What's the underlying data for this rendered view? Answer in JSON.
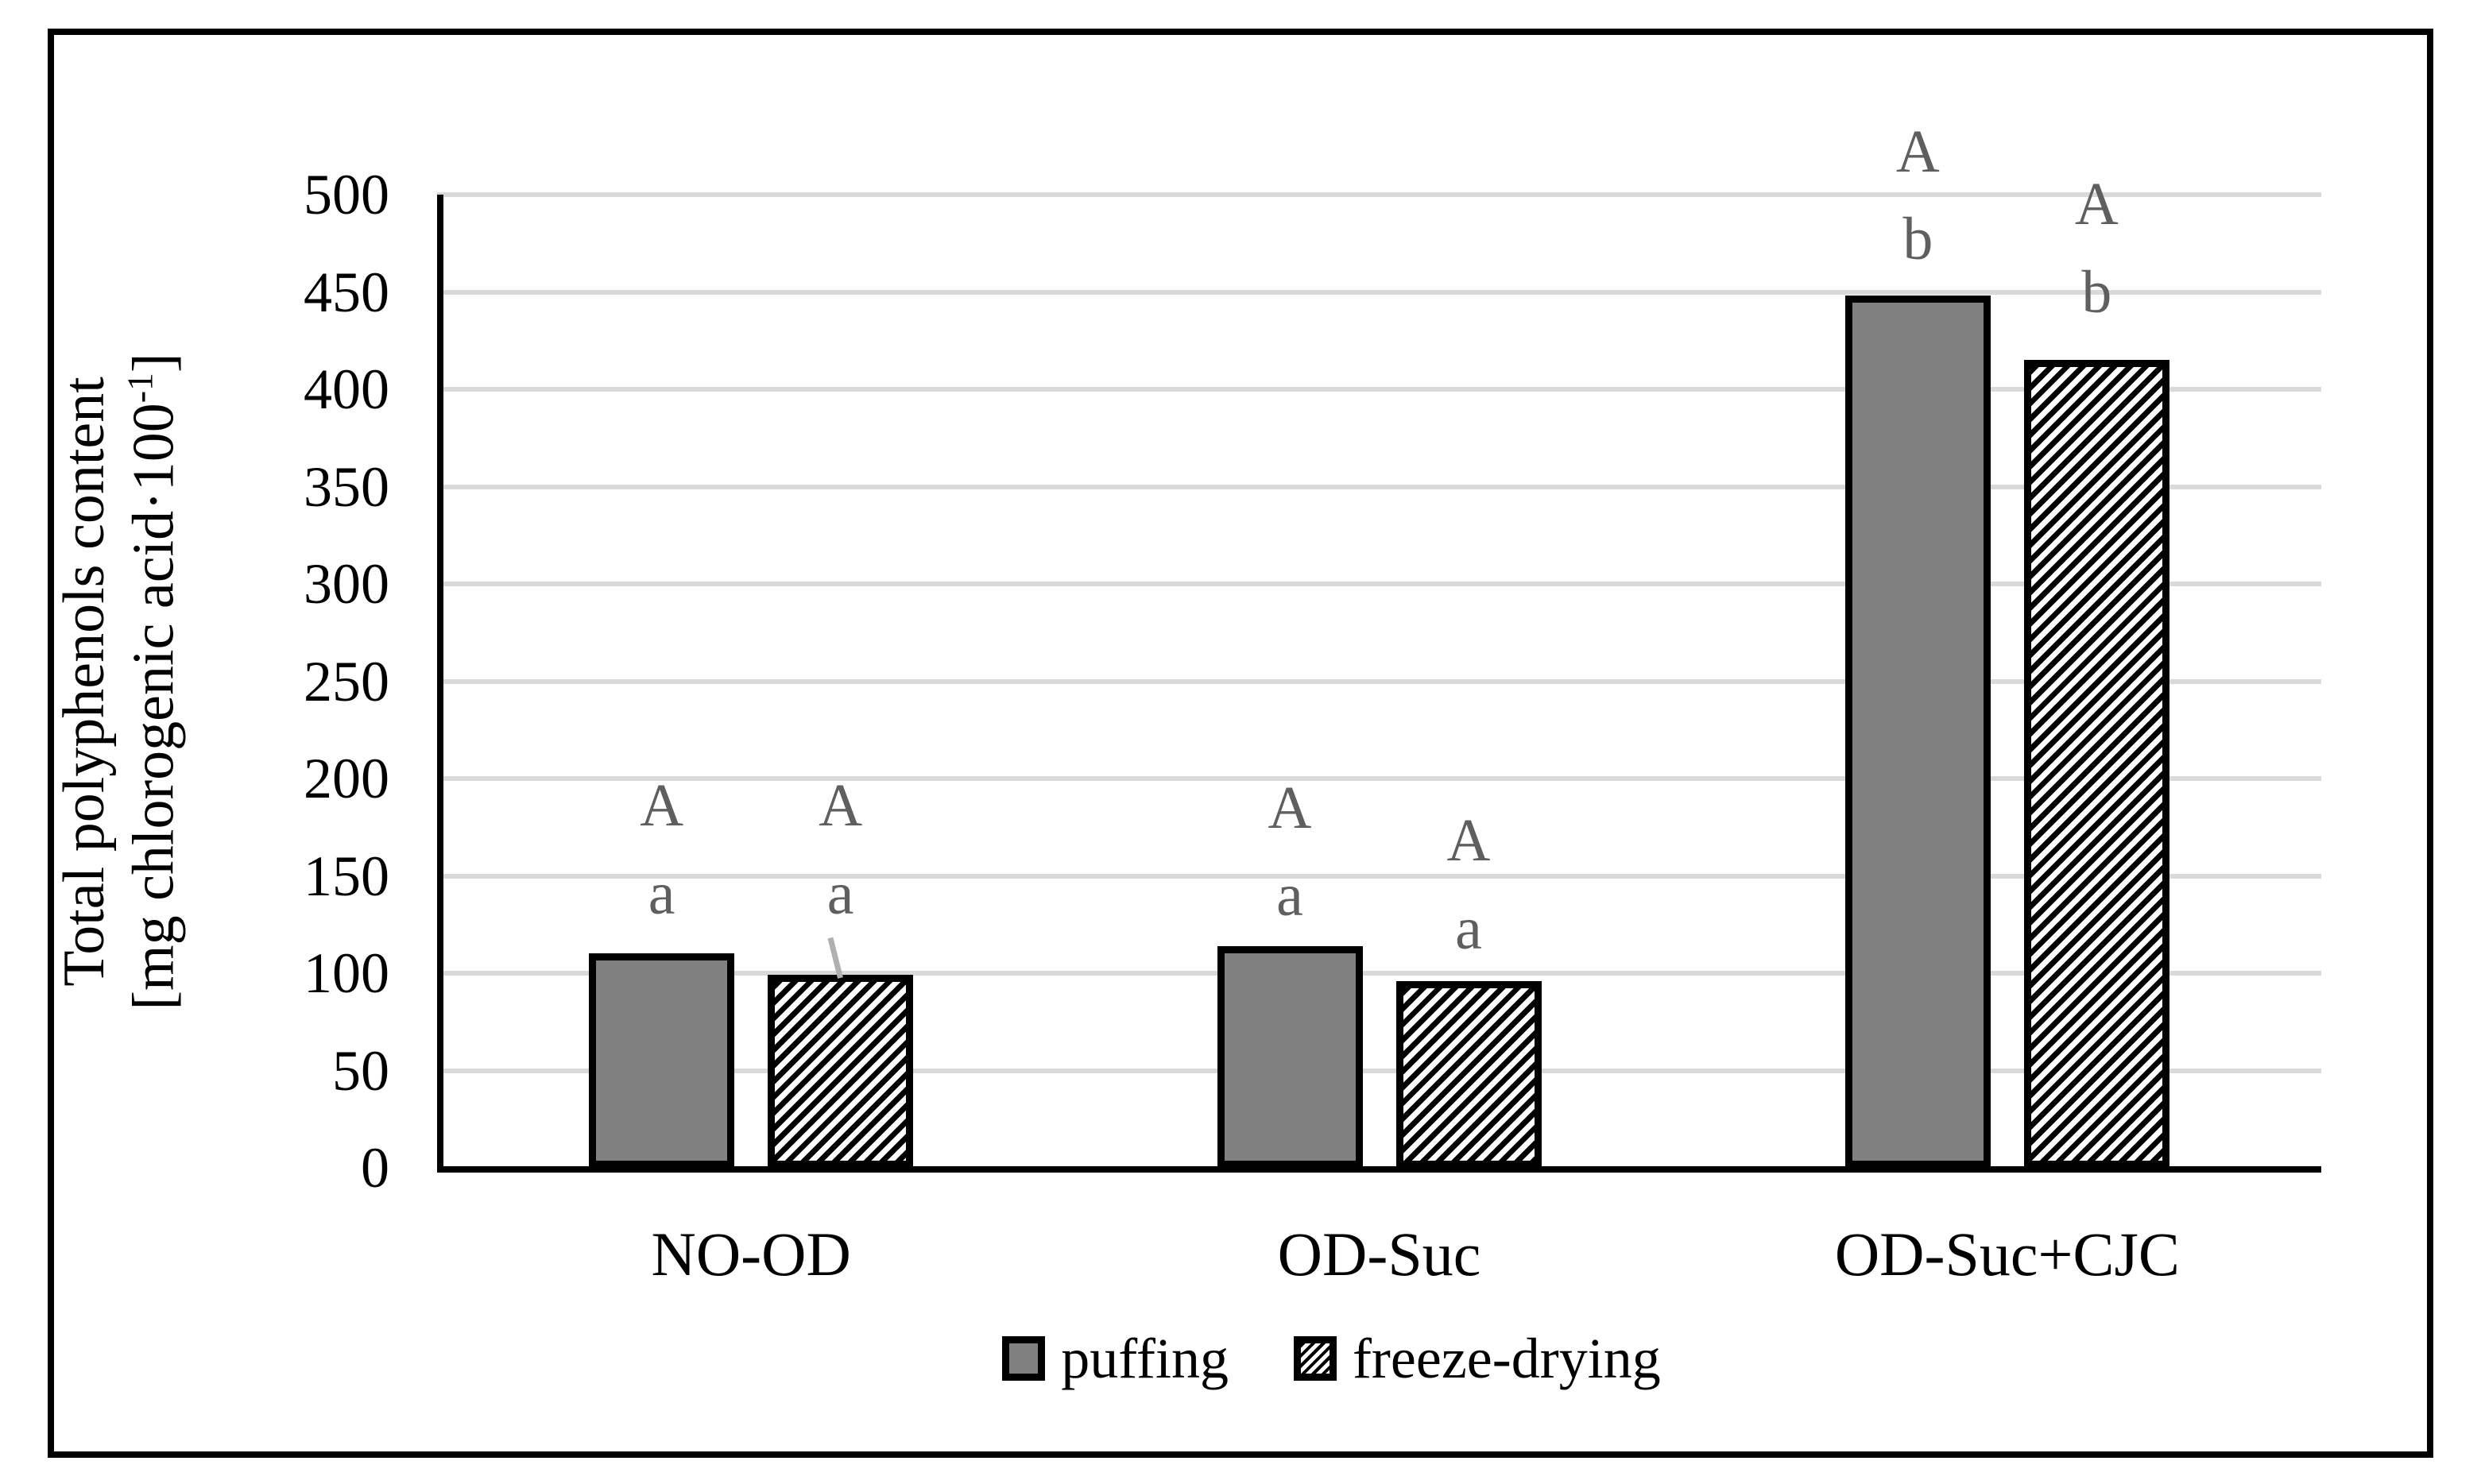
{
  "figure": {
    "background": "#ffffff",
    "border_color": "#000000"
  },
  "y_axis": {
    "title_line1": "Total polyphenols content",
    "title_line2_base": "[mg chlorogenic acid·100",
    "title_line2_sup": "-1",
    "title_line2_close": "]"
  },
  "chart_data": {
    "type": "bar",
    "title": "",
    "xlabel": "",
    "ylabel": "Total polyphenols content [mg chlorogenic acid·100⁻¹]",
    "ylim": [
      0,
      500
    ],
    "ytick_step": 50,
    "yticks": [
      0,
      50,
      100,
      150,
      200,
      250,
      300,
      350,
      400,
      450,
      500
    ],
    "grid": true,
    "legend_position": "bottom",
    "categories": [
      "NO-OD",
      "OD-Suc",
      "OD-Suc+CJC"
    ],
    "series": [
      {
        "name": "puffing",
        "pattern": "solid",
        "color": "#808080",
        "values": [
          110,
          114,
          448
        ]
      },
      {
        "name": "freeze-drying",
        "pattern": "diagonal-hatch",
        "color": "#000000",
        "background": "#ffffff",
        "values": [
          99,
          96,
          415
        ]
      }
    ],
    "significance_letters": [
      {
        "category": "NO-OD",
        "series": "puffing",
        "upper": "A",
        "lower": "a",
        "upper_y": 186,
        "lower_y": 141
      },
      {
        "category": "NO-OD",
        "series": "freeze-drying",
        "upper": "A",
        "lower": "a",
        "upper_y": 186,
        "lower_y": 141,
        "leader_line": true
      },
      {
        "category": "OD-Suc",
        "series": "puffing",
        "upper": "A",
        "lower": "a",
        "upper_y": 185,
        "lower_y": 140
      },
      {
        "category": "OD-Suc",
        "series": "freeze-drying",
        "upper": "A",
        "lower": "a",
        "upper_y": 168,
        "lower_y": 123
      },
      {
        "category": "OD-Suc+CJC",
        "series": "puffing",
        "upper": "A",
        "lower": "b",
        "upper_y": 522,
        "lower_y": 477
      },
      {
        "category": "OD-Suc+CJC",
        "series": "freeze-drying",
        "upper": "A",
        "lower": "b",
        "upper_y": 495,
        "lower_y": 450
      }
    ]
  },
  "legend": {
    "items": [
      {
        "label": "puffing",
        "swatch": "solid-gray"
      },
      {
        "label": "freeze-drying",
        "swatch": "diagonal-hatch"
      }
    ]
  },
  "style": {
    "bar_fill_gray": "#808080",
    "bar_border": "#000000",
    "grid_color": "#d9d9d9",
    "axis_color": "#000000",
    "letter_color": "#5f5f5f",
    "leader_color": "#b0b0b0",
    "text_color": "#000000"
  }
}
